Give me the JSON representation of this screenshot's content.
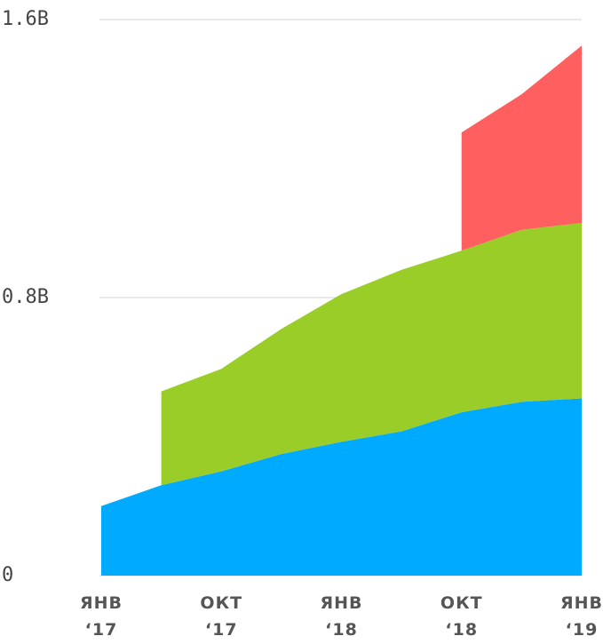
{
  "chart_data": {
    "type": "stacked_area",
    "categories": [
      "ЯНВ\n‘17",
      null,
      "ОКТ\n‘17",
      null,
      "ЯНВ\n‘18",
      null,
      "ОКТ\n‘18",
      null,
      "ЯНВ\n‘19"
    ],
    "series": [
      {
        "color": "#00aaff",
        "values": [
          0.2,
          0.26,
          0.3,
          0.35,
          0.385,
          0.415,
          0.47,
          0.5,
          0.51
        ]
      },
      {
        "color": "#9acd28",
        "values": [
          null,
          0.27,
          0.295,
          0.36,
          0.425,
          0.465,
          0.465,
          0.495,
          0.505
        ]
      },
      {
        "color": "#ff5f5f",
        "values": [
          null,
          null,
          null,
          null,
          null,
          null,
          0.34,
          0.39,
          0.51
        ]
      }
    ],
    "ylim": [
      0,
      1.6
    ],
    "yticks": [
      0,
      {
        "value": 0.8,
        "label": "0.8B"
      },
      {
        "value": 1.6,
        "label": "1.6B"
      }
    ],
    "grid": true
  }
}
